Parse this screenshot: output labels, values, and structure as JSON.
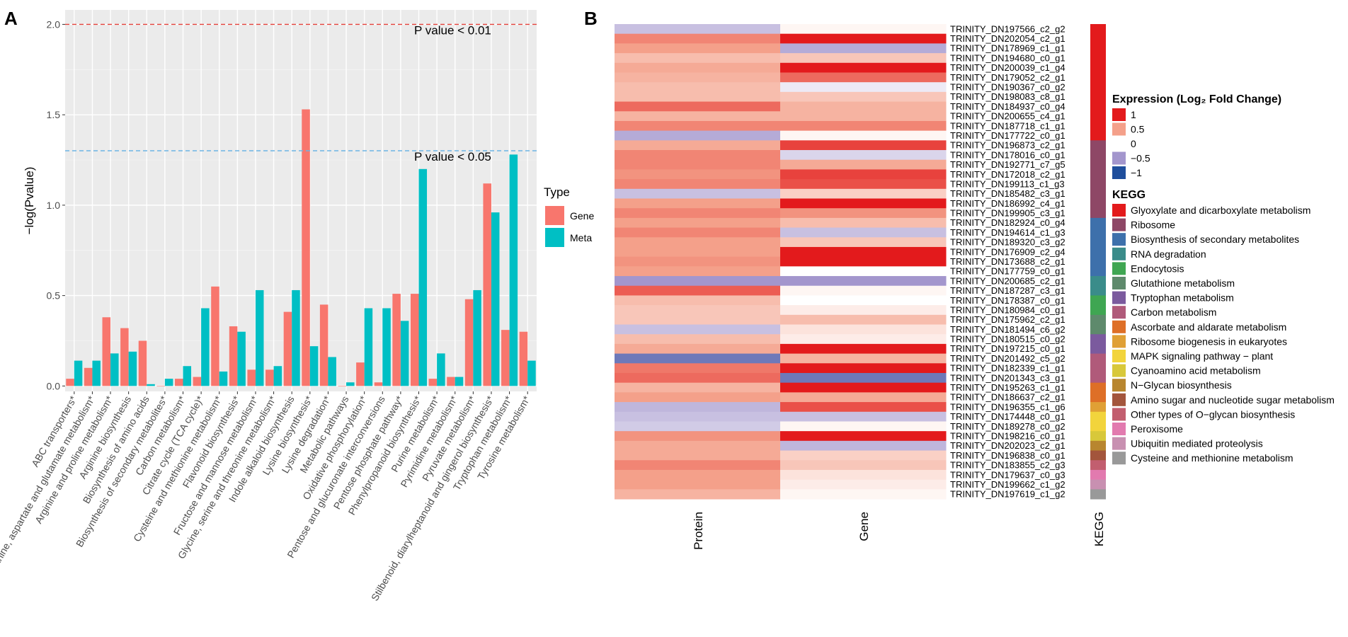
{
  "panel_labels": {
    "a": "A",
    "b": "B"
  },
  "chart_data": [
    {
      "type": "bar",
      "panel": "A",
      "ylabel": "−log(Pvalue)",
      "xlabel": "",
      "ylim": [
        -0.03,
        2.08
      ],
      "yticks": [
        "0.0",
        "0.5",
        "1.0",
        "1.5",
        "2.0"
      ],
      "grid": true,
      "legend_title": "Type",
      "legend_position": "right",
      "categories": [
        "ABC transporters*",
        "Alanine, aspartate and glutamate metabolism*",
        "Arginine and proline metabolism*",
        "Arginine biosynthesis",
        "Biosynthesis of amino acids",
        "Biosynthesis of secondary metabolites*",
        "Carbon metabolism*",
        "Citrate cycle (TCA cycle)*",
        "Cysteine and methionine metabolism*",
        "Flavonoid biosynthesis*",
        "Fructose and mannose metabolism*",
        "Glycine, serine and threonine metabolism*",
        "Indole alkaloid biosynthesis",
        "Lysine biosynthesis*",
        "Lysine degradation*",
        "Metabolic pathways",
        "Oxidative phosphorylation*",
        "Pentose and glucuronate interconversions",
        "Pentose phosphate pathway*",
        "Phenylpropanoid biosynthesis*",
        "Purine metabolism*",
        "Pyrimidine metabolism*",
        "Pyruvate metabolism*",
        "Stilbenoid, diarylheptanoid and gingerol biosynthesis*",
        "Tryptophan metabolism*",
        "Tyrosine metabolism*"
      ],
      "series": [
        {
          "name": "Gene",
          "color": "#F8766D",
          "values": [
            0.04,
            0.1,
            0.38,
            0.32,
            0.25,
            0.0,
            0.04,
            0.05,
            0.55,
            0.33,
            0.09,
            0.09,
            0.41,
            1.53,
            0.45,
            0.0,
            0.13,
            0.02,
            0.51,
            0.51,
            0.04,
            0.05,
            0.48,
            1.12,
            0.31,
            0.3
          ]
        },
        {
          "name": "Meta",
          "color": "#00BFC4",
          "values": [
            0.14,
            0.14,
            0.18,
            0.19,
            0.01,
            0.04,
            0.11,
            0.43,
            0.08,
            0.3,
            0.53,
            0.11,
            0.53,
            0.22,
            0.16,
            0.02,
            0.43,
            0.43,
            0.36,
            1.2,
            0.18,
            0.05,
            0.53,
            0.96,
            1.28,
            0.14
          ]
        }
      ],
      "reference_lines": [
        {
          "value": 2.0,
          "label": "P value < 0.01",
          "color": "#E5403A"
        },
        {
          "value": 1.301,
          "label": "P value < 0.05",
          "color": "#6CB4E4"
        }
      ]
    },
    {
      "type": "heatmap",
      "panel": "B",
      "columns": [
        "Protein",
        "Gene"
      ],
      "annotation_column": "KEGG",
      "rows": [
        "TRINITY_DN197566_c2_g2",
        "TRINITY_DN202054_c2_g1",
        "TRINITY_DN178969_c1_g1",
        "TRINITY_DN194680_c0_g1",
        "TRINITY_DN200039_c1_g4",
        "TRINITY_DN179052_c2_g1",
        "TRINITY_DN190367_c0_g2",
        "TRINITY_DN198083_c8_g1",
        "TRINITY_DN184937_c0_g4",
        "TRINITY_DN200655_c4_g1",
        "TRINITY_DN187718_c1_g1",
        "TRINITY_DN177722_c0_g1",
        "TRINITY_DN196873_c2_g1",
        "TRINITY_DN178016_c0_g1",
        "TRINITY_DN192771_c7_g5",
        "TRINITY_DN172018_c2_g1",
        "TRINITY_DN199113_c1_g3",
        "TRINITY_DN185482_c3_g1",
        "TRINITY_DN186992_c4_g1",
        "TRINITY_DN199905_c3_g1",
        "TRINITY_DN182924_c0_g4",
        "TRINITY_DN194614_c1_g3",
        "TRINITY_DN189320_c3_g2",
        "TRINITY_DN176909_c2_g4",
        "TRINITY_DN173688_c2_g1",
        "TRINITY_DN177759_c0_g1",
        "TRINITY_DN200685_c2_g1",
        "TRINITY_DN187287_c3_g1",
        "TRINITY_DN178387_c0_g1",
        "TRINITY_DN180984_c0_g1",
        "TRINITY_DN175962_c2_g1",
        "TRINITY_DN181494_c6_g2",
        "TRINITY_DN180515_c0_g2",
        "TRINITY_DN197215_c0_g1",
        "TRINITY_DN201492_c5_g2",
        "TRINITY_DN182339_c1_g1",
        "TRINITY_DN201343_c3_g1",
        "TRINITY_DN195263_c1_g1",
        "TRINITY_DN186637_c2_g1",
        "TRINITY_DN196355_c1_g6",
        "TRINITY_DN174448_c0_g1",
        "TRINITY_DN189278_c0_g2",
        "TRINITY_DN198216_c0_g1",
        "TRINITY_DN202023_c2_g1",
        "TRINITY_DN196838_c0_g1",
        "TRINITY_DN183855_c2_g3",
        "TRINITY_DN179637_c0_g3",
        "TRINITY_DN199662_c1_g2",
        "TRINITY_DN197619_c1_g2"
      ],
      "values": {
        "Protein": [
          -0.3,
          0.6,
          0.5,
          0.35,
          0.45,
          0.4,
          0.35,
          0.35,
          0.7,
          0.4,
          0.6,
          -0.4,
          0.45,
          0.6,
          0.6,
          0.55,
          0.6,
          -0.3,
          0.5,
          0.6,
          0.5,
          0.6,
          0.5,
          0.5,
          0.55,
          0.5,
          -0.5,
          0.75,
          0.35,
          0.3,
          0.3,
          -0.3,
          0.35,
          0.45,
          -0.7,
          0.65,
          0.7,
          0.4,
          0.5,
          -0.35,
          -0.3,
          -0.25,
          0.55,
          0.45,
          0.45,
          0.6,
          0.5,
          0.5,
          0.4
        ],
        "Gene": [
          0.05,
          1.0,
          -0.4,
          0.3,
          1.0,
          0.7,
          -0.1,
          0.3,
          0.4,
          0.4,
          0.6,
          0.05,
          0.85,
          -0.2,
          0.45,
          0.85,
          0.8,
          0.25,
          1.0,
          0.55,
          0.35,
          -0.3,
          0.3,
          1.0,
          1.0,
          0.0,
          -0.5,
          0.05,
          0.0,
          0.1,
          0.35,
          0.15,
          0.1,
          1.0,
          0.4,
          1.0,
          -0.7,
          1.0,
          0.45,
          0.8,
          -0.3,
          0.05,
          1.0,
          -0.35,
          0.25,
          0.3,
          0.15,
          0.1,
          0.05
        ]
      },
      "kegg_groups": [
        {
          "name": "Glyoxylate and dicarboxylate metabolism",
          "color": "#E31A1C",
          "count": 12
        },
        {
          "name": "Ribosome",
          "color": "#8E4766",
          "count": 8
        },
        {
          "name": "Biosynthesis of secondary metabolites",
          "color": "#3D70AB",
          "count": 6
        },
        {
          "name": "RNA degradation",
          "color": "#3A8C8A",
          "count": 2
        },
        {
          "name": "Endocytosis",
          "color": "#3FA652",
          "count": 2
        },
        {
          "name": "Glutathione metabolism",
          "color": "#5E8A6C",
          "count": 2
        },
        {
          "name": "Tryptophan metabolism",
          "color": "#7B5A9E",
          "count": 2
        },
        {
          "name": "Carbon metabolism",
          "color": "#B05A7A",
          "count": 3
        },
        {
          "name": "Ascorbate and aldarate metabolism",
          "color": "#DE6F27",
          "count": 2
        },
        {
          "name": "Ribosome biogenesis in eukaryotes",
          "color": "#E0A035",
          "count": 1
        },
        {
          "name": "MAPK signaling pathway − plant",
          "color": "#F2D43C",
          "count": 2
        },
        {
          "name": "Cyanoamino acid metabolism",
          "color": "#D8C83A",
          "count": 1
        },
        {
          "name": "N−Glycan biosynthesis",
          "color": "#B8862F",
          "count": 1
        },
        {
          "name": "Amino sugar and nucleotide sugar metabolism",
          "color": "#A3553C",
          "count": 1
        },
        {
          "name": "Other types of O−glycan biosynthesis",
          "color": "#C25E6F",
          "count": 1
        },
        {
          "name": "Peroxisome",
          "color": "#E27AAF",
          "count": 1
        },
        {
          "name": "Ubiquitin mediated proteolysis",
          "color": "#C890B1",
          "count": 1
        },
        {
          "name": "Cysteine and methionine metabolism",
          "color": "#999999",
          "count": 1
        }
      ],
      "expression_legend": {
        "title": "Expression (Log₂ Fold Change)",
        "items": [
          {
            "label": "1",
            "value": 1,
            "color": "#E31A1C"
          },
          {
            "label": "0.5",
            "value": 0.5,
            "color": "#F4A08A"
          },
          {
            "label": "0",
            "value": 0,
            "color": "#FFFFFF"
          },
          {
            "label": "−0.5",
            "value": -0.5,
            "color": "#A396CD"
          },
          {
            "label": "−1",
            "value": -1,
            "color": "#1F4E9C"
          }
        ]
      },
      "kegg_legend_title": "KEGG"
    }
  ]
}
